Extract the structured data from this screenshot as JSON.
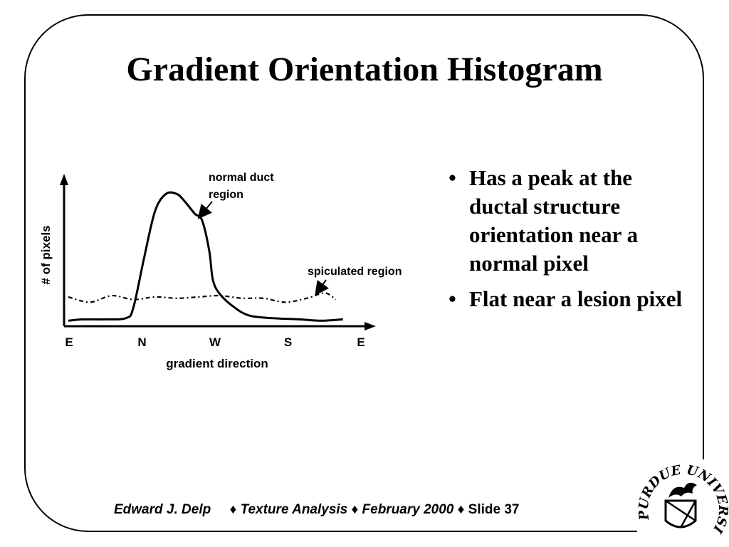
{
  "slide": {
    "title": "Gradient Orientation Histogram",
    "bullets": [
      "Has a peak at the ductal structure orientation near a normal pixel",
      "Flat near a lesion pixel"
    ],
    "bullet_symbol": "•",
    "footer": {
      "author": "Edward J. Delp",
      "topic": "Texture Analysis",
      "date": "February 2000",
      "slide_label": "Slide 37",
      "separator": "♦"
    },
    "logo_text": "PURDUE UNIVERSITY"
  },
  "chart_data": {
    "type": "line",
    "title": "",
    "xlabel": "gradient direction",
    "ylabel": "# of pixels",
    "categories": [
      "E",
      "N",
      "W",
      "S",
      "E"
    ],
    "series": [
      {
        "name": "normal duct region",
        "style": "solid",
        "x": [
          0,
          0.2,
          0.5,
          0.8,
          0.9,
          1.05,
          1.2,
          1.35,
          1.5,
          1.6,
          1.75,
          1.85,
          1.95,
          2.0,
          2.1,
          2.3,
          2.5,
          2.8,
          3.2,
          3.5,
          3.8
        ],
        "y": [
          0.02,
          0.03,
          0.03,
          0.04,
          0.12,
          0.5,
          0.85,
          0.98,
          0.98,
          0.93,
          0.83,
          0.78,
          0.55,
          0.33,
          0.22,
          0.12,
          0.06,
          0.04,
          0.03,
          0.02,
          0.03
        ]
      },
      {
        "name": "spiculated region",
        "style": "dashed",
        "x": [
          0,
          0.3,
          0.6,
          0.9,
          1.2,
          1.5,
          1.8,
          2.1,
          2.4,
          2.7,
          3.0,
          3.3,
          3.55,
          3.7
        ],
        "y": [
          0.2,
          0.16,
          0.21,
          0.18,
          0.2,
          0.19,
          0.2,
          0.21,
          0.19,
          0.19,
          0.16,
          0.19,
          0.23,
          0.18
        ]
      }
    ],
    "annotations": [
      {
        "text": "normal duct region",
        "lines": [
          "normal duct",
          "region"
        ]
      },
      {
        "text": "spiculated region",
        "lines": [
          "spiculated region"
        ]
      }
    ],
    "xlim": [
      0,
      4
    ],
    "ylim": [
      0,
      1.1
    ],
    "grid": false,
    "legend": "none"
  }
}
